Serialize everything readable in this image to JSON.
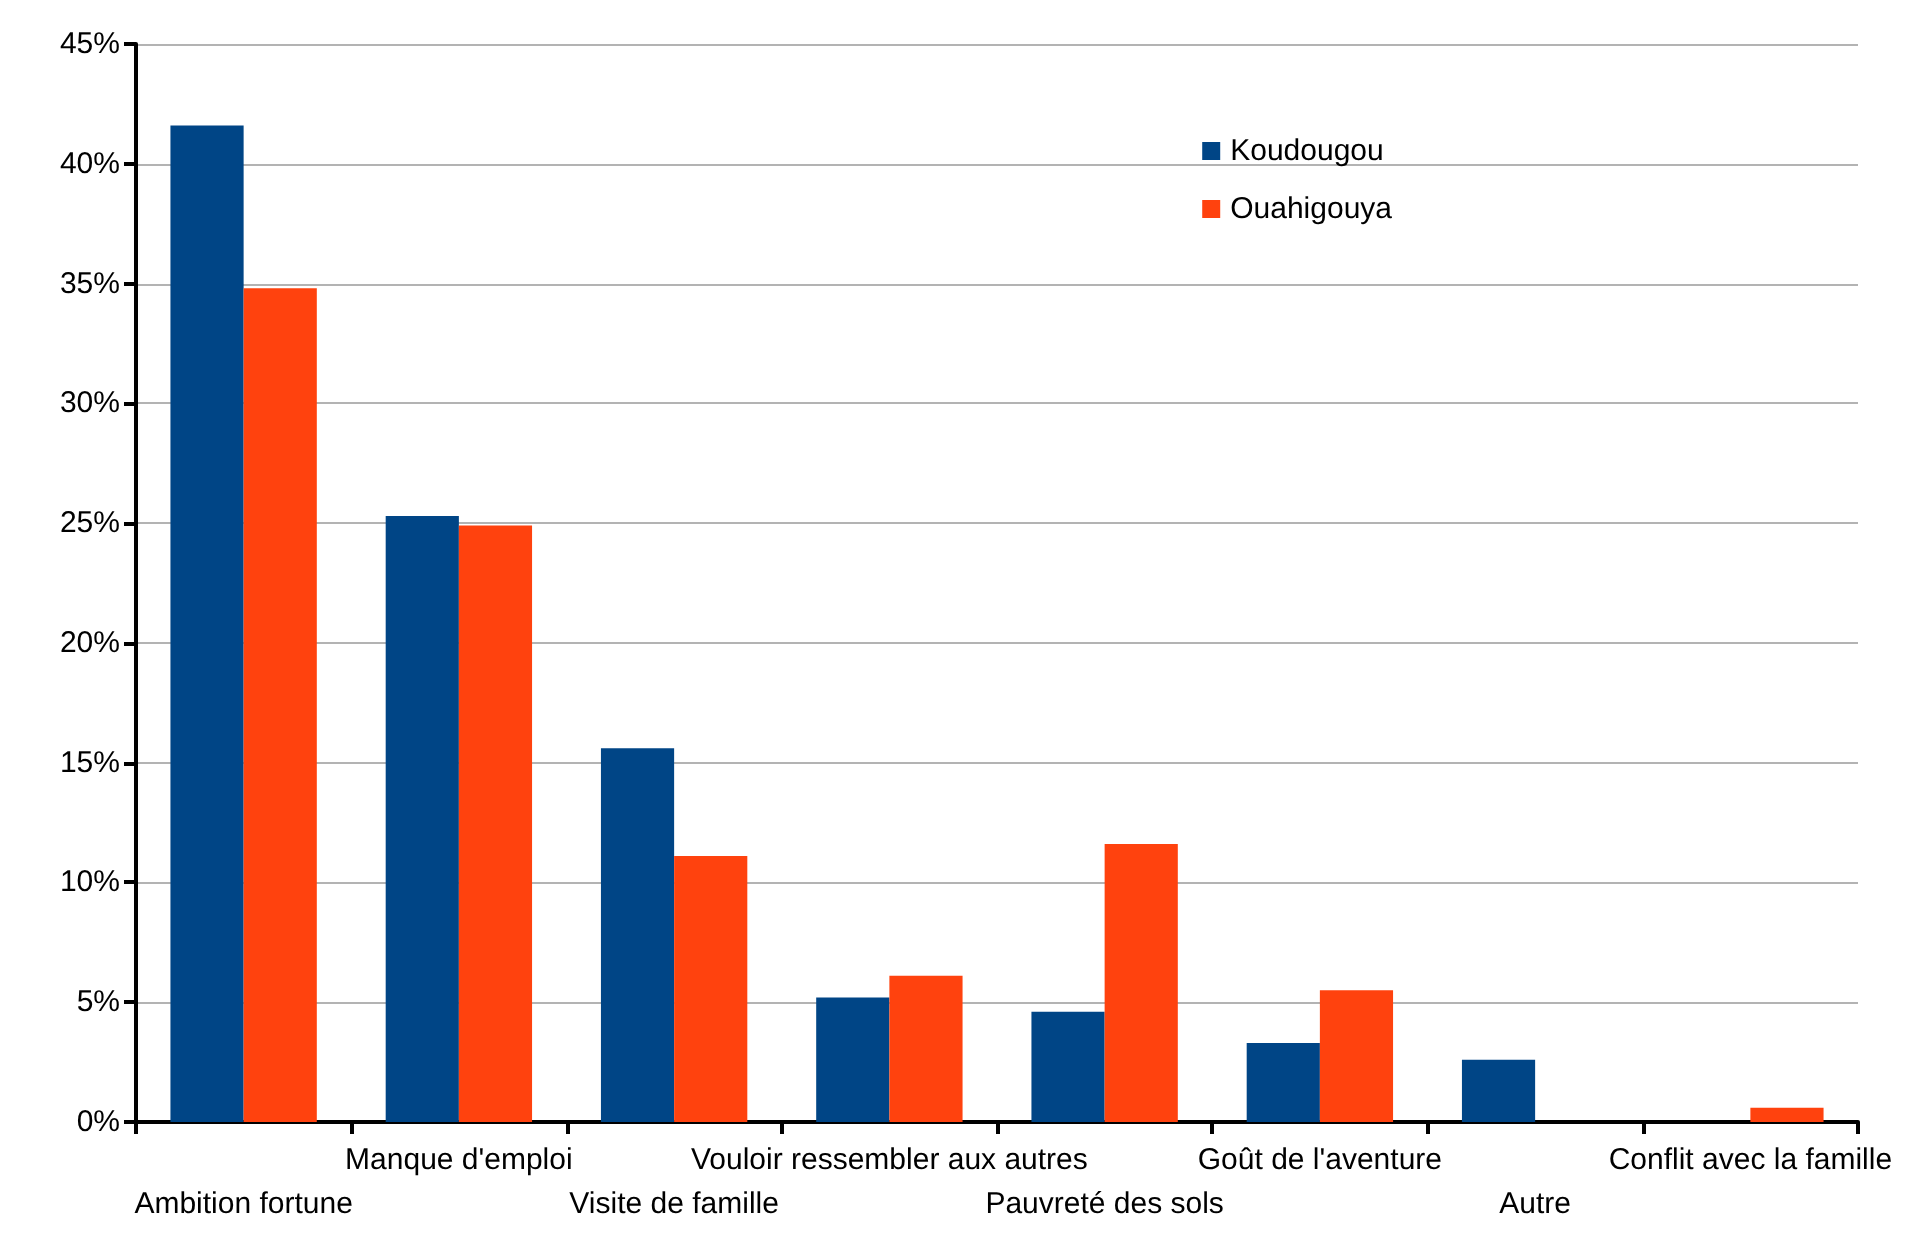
{
  "chart_data": {
    "type": "bar",
    "categories": [
      "Ambition fortune",
      "Manque d'emploi",
      "Visite de famille",
      "Vouloir ressembler aux autres",
      "Pauvreté des sols",
      "Goût de l'aventure",
      "Autre",
      "Conflit avec la famille"
    ],
    "series": [
      {
        "name": "Koudougou",
        "color": "#004586",
        "values": [
          41.6,
          25.3,
          15.6,
          5.2,
          4.6,
          3.3,
          2.6,
          0
        ]
      },
      {
        "name": "Ouahigouya",
        "color": "#ff420e",
        "values": [
          34.8,
          24.9,
          11.1,
          6.1,
          11.6,
          5.5,
          0,
          0.6
        ]
      }
    ],
    "ylim": [
      0,
      45
    ],
    "yticks": [
      {
        "value": 0,
        "label": "0%"
      },
      {
        "value": 5,
        "label": "5%"
      },
      {
        "value": 10,
        "label": "10%"
      },
      {
        "value": 15,
        "label": "15%"
      },
      {
        "value": 20,
        "label": "20%"
      },
      {
        "value": 25,
        "label": "25%"
      },
      {
        "value": 30,
        "label": "30%"
      },
      {
        "value": 35,
        "label": "35%"
      },
      {
        "value": 40,
        "label": "40%"
      },
      {
        "value": 45,
        "label": "45%"
      }
    ],
    "grid": "y",
    "legend": "top right"
  }
}
